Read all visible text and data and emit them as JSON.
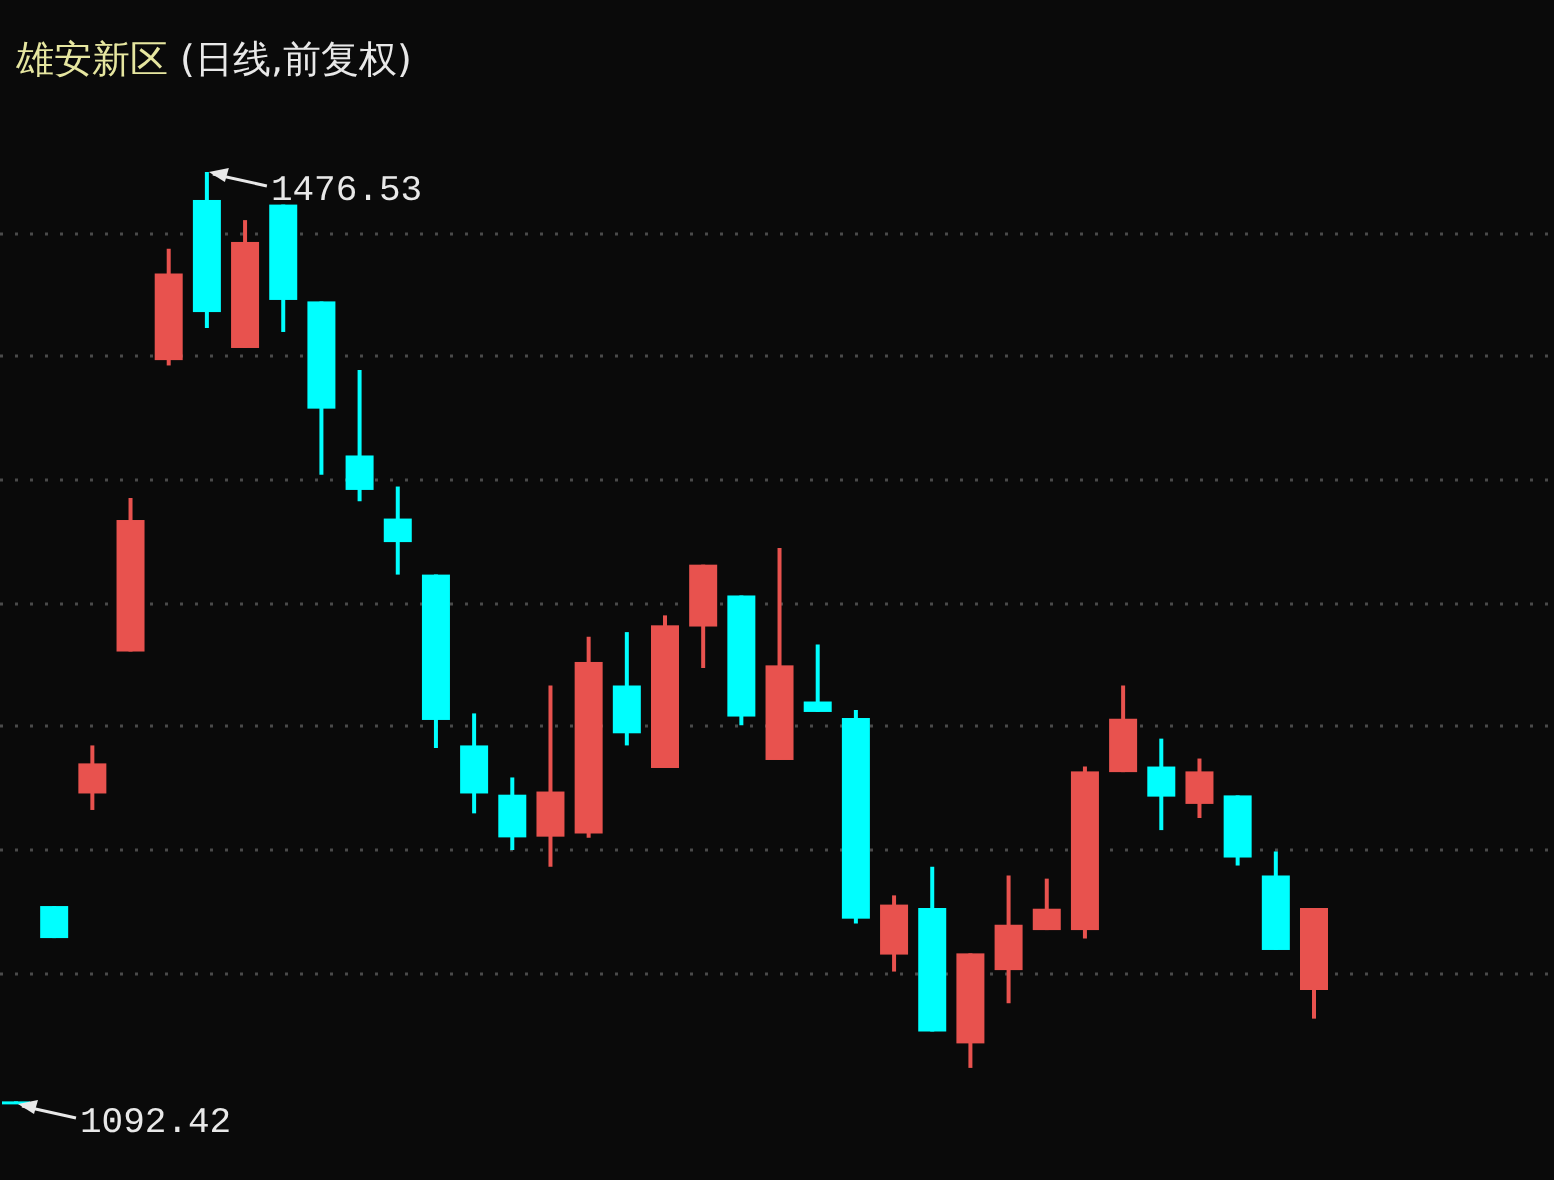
{
  "chart_data": {
    "type": "candlestick",
    "title": "雄安新区 (日线,前复权)",
    "categories": [
      null,
      null,
      null,
      null,
      null,
      null,
      null,
      null,
      null,
      null,
      null,
      null,
      null,
      null,
      null,
      null,
      null,
      null,
      null,
      null,
      null,
      null,
      null,
      null,
      null,
      null,
      null,
      null,
      null,
      null,
      null,
      null,
      null,
      null,
      null
    ],
    "ohlc": [
      [
        1093.5,
        1093.5,
        1092.42,
        1092.42
      ],
      [
        1174.0,
        1174.0,
        1160.8,
        1160.8
      ],
      [
        1220.4,
        1240.2,
        1213.6,
        1232.8
      ],
      [
        1278.9,
        1342.2,
        1278.9,
        1333.1
      ],
      [
        1399.0,
        1444.9,
        1396.8,
        1434.7
      ],
      [
        1465.0,
        1476.53,
        1412.2,
        1418.8
      ],
      [
        1404.0,
        1456.7,
        1404.0,
        1447.7
      ],
      [
        1463.1,
        1463.1,
        1410.6,
        1423.8
      ],
      [
        1423.2,
        1423.2,
        1351.8,
        1379.0
      ],
      [
        1359.7,
        1394.9,
        1340.8,
        1345.5
      ],
      [
        1333.7,
        1346.9,
        1310.6,
        1324.0
      ],
      [
        1310.6,
        1310.6,
        1239.1,
        1250.7
      ],
      [
        1240.2,
        1253.4,
        1212.2,
        1220.4
      ],
      [
        1219.9,
        1227.0,
        1197.1,
        1202.3
      ],
      [
        1202.6,
        1264.9,
        1190.2,
        1221.2
      ],
      [
        1203.9,
        1285.0,
        1202.1,
        1274.6
      ],
      [
        1264.9,
        1286.9,
        1240.2,
        1245.2
      ],
      [
        1230.9,
        1293.8,
        1230.9,
        1289.7
      ],
      [
        1289.2,
        1314.7,
        1272.1,
        1314.7
      ],
      [
        1302.0,
        1302.0,
        1248.5,
        1252.1
      ],
      [
        1234.2,
        1321.6,
        1234.2,
        1273.2
      ],
      [
        1258.3,
        1281.8,
        1254.0,
        1254.0
      ],
      [
        1251.5,
        1254.8,
        1166.8,
        1168.8
      ],
      [
        1154.0,
        1178.4,
        1147.0,
        1174.6
      ],
      [
        1173.2,
        1190.2,
        1122.3,
        1122.3
      ],
      [
        1117.4,
        1154.5,
        1107.3,
        1154.5
      ],
      [
        1147.6,
        1186.6,
        1133.9,
        1166.3
      ],
      [
        1164.1,
        1185.3,
        1164.1,
        1172.9
      ],
      [
        1164.1,
        1231.5,
        1160.6,
        1229.5
      ],
      [
        1229.2,
        1264.9,
        1229.2,
        1251.2
      ],
      [
        1231.5,
        1243.0,
        1205.3,
        1219.1
      ],
      [
        1216.1,
        1234.8,
        1210.3,
        1229.5
      ],
      [
        1219.6,
        1219.6,
        1190.7,
        1194.0
      ],
      [
        1186.6,
        1196.5,
        1155.9,
        1155.9
      ],
      [
        1139.4,
        1173.2,
        1127.6,
        1173.2
      ]
    ],
    "colors": [
      "#00ffff",
      "#00ffff",
      "#e8524e",
      "#e8524e",
      "#e8524e",
      "#00ffff",
      "#e8524e",
      "#00ffff",
      "#00ffff",
      "#00ffff",
      "#00ffff",
      "#00ffff",
      "#00ffff",
      "#00ffff",
      "#e8524e",
      "#e8524e",
      "#00ffff",
      "#e8524e",
      "#e8524e",
      "#00ffff",
      "#e8524e",
      "#00ffff",
      "#00ffff",
      "#e8524e",
      "#00ffff",
      "#e8524e",
      "#e8524e",
      "#e8524e",
      "#e8524e",
      "#e8524e",
      "#00ffff",
      "#e8524e",
      "#00ffff",
      "#00ffff",
      "#e8524e"
    ],
    "yticks": [
      {
        "value": 1451.0,
        "label": null
      },
      {
        "value": 1400.7,
        "label": null
      },
      {
        "value": 1349.6,
        "label": null
      },
      {
        "value": 1298.5,
        "label": null
      },
      {
        "value": 1248.2,
        "label": null
      },
      {
        "value": 1197.1,
        "label": null
      },
      {
        "value": 1146.0,
        "label": null
      }
    ],
    "grid": "y",
    "annotations": [
      "1476.53",
      "1092.42"
    ]
  }
}
